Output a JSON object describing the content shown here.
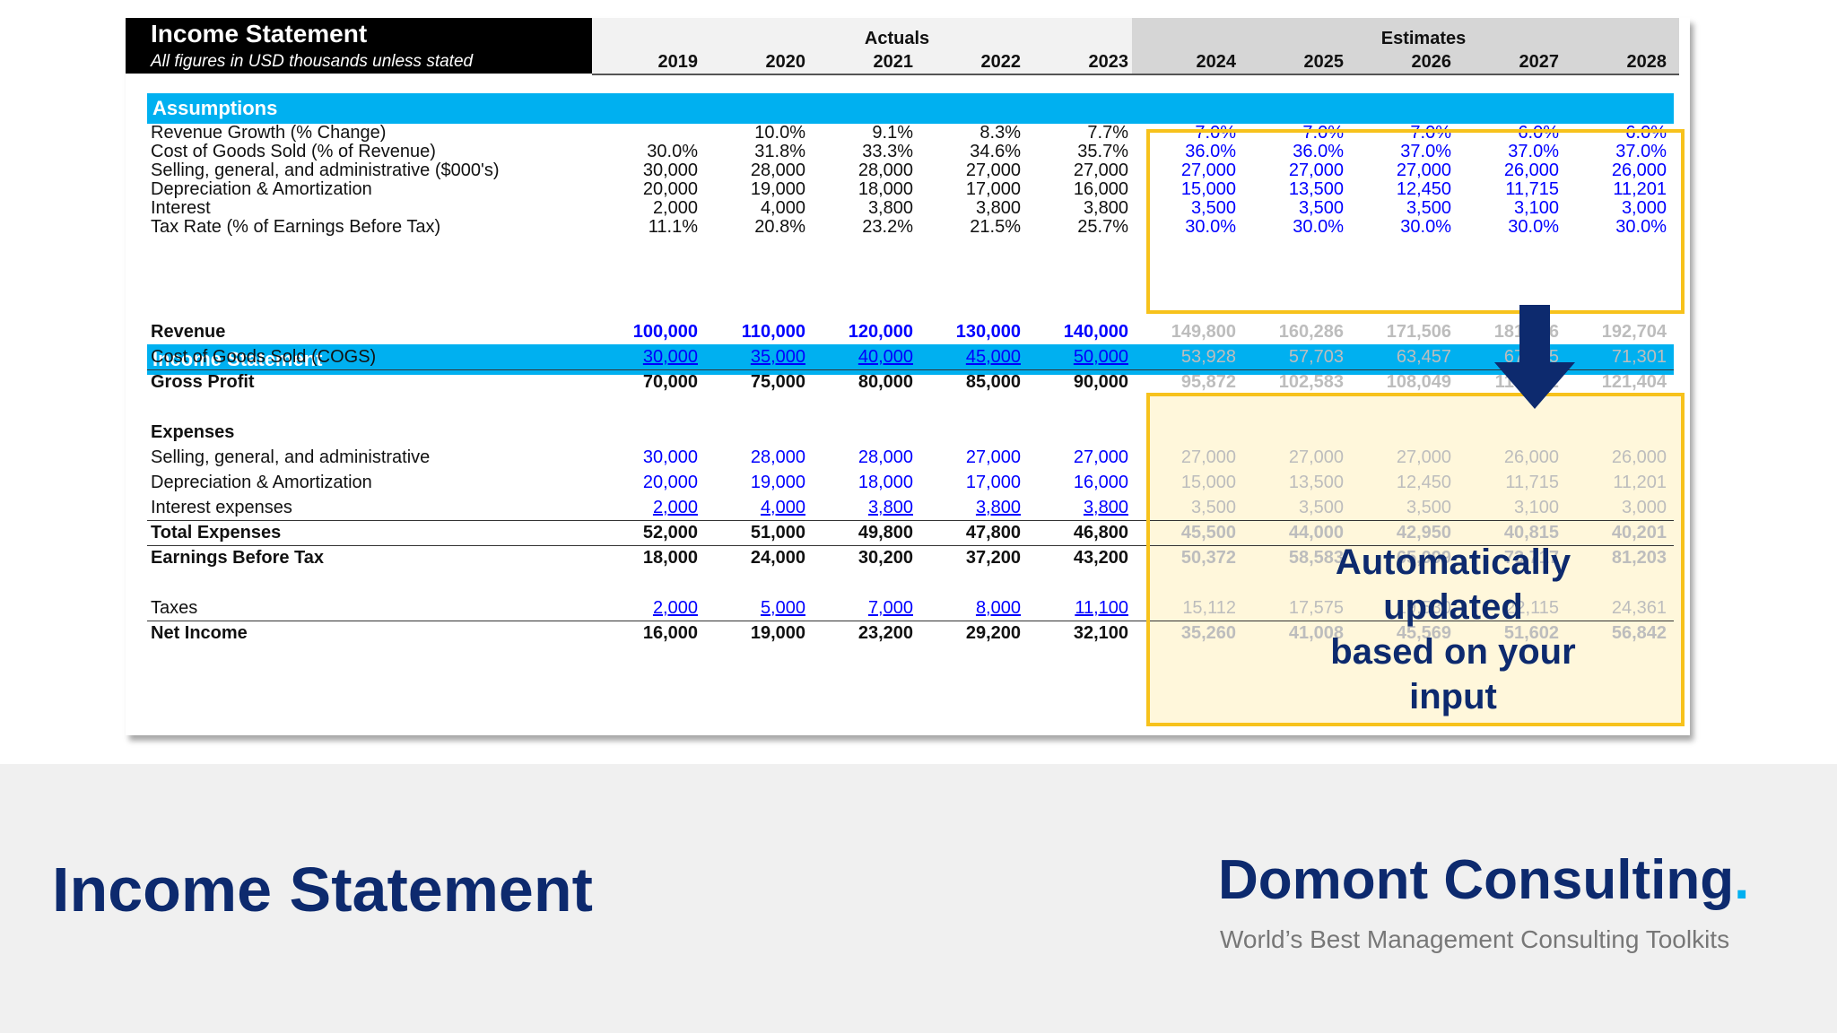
{
  "sheet": {
    "title": "Income Statement",
    "subtitle": "All figures in USD thousands unless stated",
    "actuals_label": "Actuals",
    "estimates_label": "Estimates",
    "years": [
      "2019",
      "2020",
      "2021",
      "2022",
      "2023",
      "2024",
      "2025",
      "2026",
      "2027",
      "2028"
    ]
  },
  "assumptions": {
    "header": "Assumptions",
    "rows": [
      {
        "label": "Revenue Growth (% Change)",
        "values": [
          "",
          "10.0%",
          "9.1%",
          "8.3%",
          "7.7%",
          "7.0%",
          "7.0%",
          "7.0%",
          "6.0%",
          "6.0%"
        ]
      },
      {
        "label": "Cost of Goods Sold (% of Revenue)",
        "values": [
          "30.0%",
          "31.8%",
          "33.3%",
          "34.6%",
          "35.7%",
          "36.0%",
          "36.0%",
          "37.0%",
          "37.0%",
          "37.0%"
        ]
      },
      {
        "label": "Selling, general, and administrative ($000's)",
        "values": [
          "30,000",
          "28,000",
          "28,000",
          "27,000",
          "27,000",
          "27,000",
          "27,000",
          "27,000",
          "26,000",
          "26,000"
        ]
      },
      {
        "label": "Depreciation & Amortization",
        "values": [
          "20,000",
          "19,000",
          "18,000",
          "17,000",
          "16,000",
          "15,000",
          "13,500",
          "12,450",
          "11,715",
          "11,201"
        ]
      },
      {
        "label": "Interest",
        "values": [
          "2,000",
          "4,000",
          "3,800",
          "3,800",
          "3,800",
          "3,500",
          "3,500",
          "3,500",
          "3,100",
          "3,000"
        ]
      },
      {
        "label": "Tax Rate (% of Earnings Before Tax)",
        "values": [
          "11.1%",
          "20.8%",
          "23.2%",
          "21.5%",
          "25.7%",
          "30.0%",
          "30.0%",
          "30.0%",
          "30.0%",
          "30.0%"
        ]
      }
    ]
  },
  "income": {
    "header": "Income Statement",
    "revenue": {
      "label": "Revenue",
      "values": [
        "100,000",
        "110,000",
        "120,000",
        "130,000",
        "140,000",
        "149,800",
        "160,286",
        "171,506",
        "181,796",
        "192,704"
      ]
    },
    "cogs": {
      "label": "Cost of Goods Sold (COGS)",
      "values": [
        "30,000",
        "35,000",
        "40,000",
        "45,000",
        "50,000",
        "53,928",
        "57,703",
        "63,457",
        "67,265",
        "71,301"
      ]
    },
    "gross": {
      "label": "Gross Profit",
      "values": [
        "70,000",
        "75,000",
        "80,000",
        "85,000",
        "90,000",
        "95,872",
        "102,583",
        "108,049",
        "114,532",
        "121,404"
      ]
    },
    "expenses_label": "Expenses",
    "sga": {
      "label": "Selling, general, and administrative",
      "values": [
        "30,000",
        "28,000",
        "28,000",
        "27,000",
        "27,000",
        "27,000",
        "27,000",
        "27,000",
        "26,000",
        "26,000"
      ]
    },
    "da": {
      "label": "Depreciation & Amortization",
      "values": [
        "20,000",
        "19,000",
        "18,000",
        "17,000",
        "16,000",
        "15,000",
        "13,500",
        "12,450",
        "11,715",
        "11,201"
      ]
    },
    "interest": {
      "label": "Interest expenses",
      "values": [
        "2,000",
        "4,000",
        "3,800",
        "3,800",
        "3,800",
        "3,500",
        "3,500",
        "3,500",
        "3,100",
        "3,000"
      ]
    },
    "total_exp": {
      "label": "Total Expenses",
      "values": [
        "52,000",
        "51,000",
        "49,800",
        "47,800",
        "46,800",
        "45,500",
        "44,000",
        "42,950",
        "40,815",
        "40,201"
      ]
    },
    "ebt": {
      "label": "Earnings Before Tax",
      "values": [
        "18,000",
        "24,000",
        "30,200",
        "37,200",
        "43,200",
        "50,372",
        "58,583",
        "65,099",
        "73,717",
        "81,203"
      ]
    },
    "taxes": {
      "label": "Taxes",
      "values": [
        "2,000",
        "5,000",
        "7,000",
        "8,000",
        "11,100",
        "15,112",
        "17,575",
        "19,530",
        "22,115",
        "24,361"
      ]
    },
    "net": {
      "label": "Net Income",
      "values": [
        "16,000",
        "19,000",
        "23,200",
        "29,200",
        "32,100",
        "35,260",
        "41,008",
        "45,569",
        "51,602",
        "56,842"
      ]
    }
  },
  "callout": {
    "line1": "Automatically updated",
    "line2": "based on your input"
  },
  "footer": {
    "title": "Income Statement",
    "brand": "Domont Consulting",
    "brand_dot": ".",
    "tagline": "World’s Best Management  Consulting Toolkits"
  },
  "colors": {
    "accent": "#00b0f0",
    "navy": "#0d2a6e",
    "highlight": "#f7c21c",
    "input_blue": "#0000ff"
  }
}
